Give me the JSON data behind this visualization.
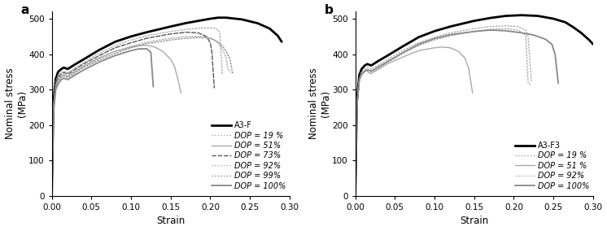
{
  "panel_a": {
    "label": "a",
    "xlabel": "Strain",
    "ylabel": "Nominal stress\n(MPa)",
    "xlim": [
      0.0,
      0.3
    ],
    "ylim": [
      0,
      520
    ],
    "yticks": [
      0,
      100,
      200,
      300,
      400,
      500
    ],
    "xticks": [
      0.0,
      0.05,
      0.1,
      0.15,
      0.2,
      0.25,
      0.3
    ],
    "curves": [
      {
        "label": "A3-F",
        "color": "#000000",
        "linewidth": 2.0,
        "linestyle": "solid",
        "x": [
          0.0,
          0.002,
          0.005,
          0.008,
          0.012,
          0.015,
          0.018,
          0.02,
          0.025,
          0.03,
          0.04,
          0.06,
          0.08,
          0.1,
          0.12,
          0.15,
          0.17,
          0.19,
          0.2,
          0.21,
          0.22,
          0.24,
          0.26,
          0.275,
          0.285,
          0.29
        ],
        "y": [
          0,
          260,
          330,
          350,
          358,
          362,
          360,
          358,
          365,
          372,
          385,
          412,
          435,
          450,
          462,
          478,
          488,
          496,
          500,
          503,
          503,
          498,
          487,
          472,
          452,
          435
        ]
      },
      {
        "label": "DOP = 19 %",
        "color": "#aaaaaa",
        "linewidth": 1.0,
        "linestyle": "dotted",
        "x": [
          0.0,
          0.002,
          0.005,
          0.008,
          0.012,
          0.015,
          0.018,
          0.02,
          0.025,
          0.03,
          0.04,
          0.06,
          0.08,
          0.1,
          0.12,
          0.15,
          0.17,
          0.19,
          0.2,
          0.205,
          0.21,
          0.212,
          0.215
        ],
        "y": [
          0,
          252,
          322,
          340,
          348,
          352,
          350,
          348,
          355,
          362,
          376,
          402,
          424,
          440,
          452,
          464,
          470,
          474,
          474,
          473,
          468,
          458,
          345
        ]
      },
      {
        "label": "DOP = 51%",
        "color": "#aaaaaa",
        "linewidth": 1.0,
        "linestyle": "solid",
        "x": [
          0.0,
          0.002,
          0.005,
          0.008,
          0.012,
          0.015,
          0.018,
          0.02,
          0.025,
          0.03,
          0.04,
          0.06,
          0.08,
          0.1,
          0.11,
          0.12,
          0.13,
          0.14,
          0.15,
          0.155,
          0.16,
          0.163
        ],
        "y": [
          0,
          245,
          312,
          328,
          338,
          342,
          340,
          338,
          345,
          352,
          366,
          390,
          408,
          420,
          424,
          425,
          420,
          408,
          385,
          365,
          320,
          290
        ]
      },
      {
        "label": "DOP = 73%",
        "color": "#555555",
        "linewidth": 1.0,
        "linestyle": "dashed",
        "x": [
          0.0,
          0.002,
          0.005,
          0.008,
          0.012,
          0.015,
          0.018,
          0.02,
          0.025,
          0.03,
          0.04,
          0.06,
          0.08,
          0.1,
          0.12,
          0.15,
          0.17,
          0.185,
          0.195,
          0.2,
          0.202,
          0.205
        ],
        "y": [
          0,
          248,
          318,
          335,
          344,
          348,
          346,
          344,
          350,
          358,
          372,
          396,
          418,
          432,
          445,
          457,
          462,
          460,
          450,
          432,
          405,
          305
        ]
      },
      {
        "label": "DOP = 92%",
        "color": "#aaaaaa",
        "linewidth": 1.0,
        "linestyle": "dotted",
        "x": [
          0.0,
          0.002,
          0.005,
          0.008,
          0.012,
          0.015,
          0.018,
          0.02,
          0.025,
          0.03,
          0.04,
          0.06,
          0.08,
          0.1,
          0.12,
          0.15,
          0.17,
          0.185,
          0.195,
          0.2,
          0.205,
          0.21,
          0.215,
          0.22,
          0.222,
          0.225
        ],
        "y": [
          0,
          242,
          312,
          328,
          338,
          342,
          340,
          338,
          345,
          352,
          365,
          388,
          408,
          422,
          434,
          445,
          450,
          450,
          448,
          445,
          440,
          430,
          415,
          390,
          360,
          350
        ]
      },
      {
        "label": "DOP = 99%",
        "color": "#888888",
        "linewidth": 1.0,
        "linestyle": "dotted",
        "x": [
          0.0,
          0.002,
          0.005,
          0.008,
          0.012,
          0.015,
          0.018,
          0.02,
          0.025,
          0.03,
          0.04,
          0.06,
          0.08,
          0.1,
          0.12,
          0.15,
          0.17,
          0.185,
          0.195,
          0.2,
          0.205,
          0.21,
          0.215,
          0.22,
          0.225,
          0.228
        ],
        "y": [
          0,
          238,
          308,
          324,
          334,
          338,
          336,
          334,
          340,
          348,
          362,
          384,
          402,
          418,
          430,
          440,
          445,
          447,
          446,
          444,
          440,
          434,
          424,
          408,
          385,
          345
        ]
      },
      {
        "label": "DOP = 100%",
        "color": "#888888",
        "linewidth": 1.3,
        "linestyle": "solid",
        "x": [
          0.0,
          0.002,
          0.005,
          0.008,
          0.012,
          0.015,
          0.018,
          0.02,
          0.025,
          0.03,
          0.04,
          0.06,
          0.08,
          0.1,
          0.11,
          0.12,
          0.125,
          0.128
        ],
        "y": [
          0,
          232,
          300,
          316,
          328,
          332,
          330,
          328,
          335,
          342,
          355,
          378,
          396,
          410,
          415,
          415,
          405,
          308
        ]
      }
    ],
    "legend_entries": [
      {
        "label": "A3-F",
        "color": "#000000",
        "linewidth": 2.0,
        "linestyle": "solid"
      },
      {
        "label": "DOP = 19 %",
        "color": "#aaaaaa",
        "linewidth": 1.0,
        "linestyle": "dotted"
      },
      {
        "label": "DOP = 51%",
        "color": "#aaaaaa",
        "linewidth": 1.0,
        "linestyle": "solid"
      },
      {
        "label": "DOP = 73%",
        "color": "#555555",
        "linewidth": 1.0,
        "linestyle": "dashed"
      },
      {
        "label": "DOP = 92%",
        "color": "#aaaaaa",
        "linewidth": 1.0,
        "linestyle": "dotted"
      },
      {
        "label": "DOP = 99%",
        "color": "#888888",
        "linewidth": 1.0,
        "linestyle": "dotted"
      },
      {
        "label": "DOP = 100%",
        "color": "#888888",
        "linewidth": 1.3,
        "linestyle": "solid"
      }
    ]
  },
  "panel_b": {
    "label": "b",
    "xlabel": "Strain",
    "ylabel": "Nominal stress\n(MPa)",
    "xlim": [
      0.0,
      0.3
    ],
    "ylim": [
      0,
      520
    ],
    "yticks": [
      0,
      100,
      200,
      300,
      400,
      500
    ],
    "xticks": [
      0.0,
      0.05,
      0.1,
      0.15,
      0.2,
      0.25,
      0.3
    ],
    "curves": [
      {
        "label": "A3-F3",
        "color": "#000000",
        "linewidth": 2.0,
        "linestyle": "solid",
        "x": [
          0.0,
          0.002,
          0.005,
          0.008,
          0.012,
          0.015,
          0.018,
          0.02,
          0.025,
          0.03,
          0.04,
          0.06,
          0.08,
          0.1,
          0.12,
          0.15,
          0.17,
          0.19,
          0.21,
          0.23,
          0.25,
          0.265,
          0.275,
          0.285,
          0.295,
          0.3
        ],
        "y": [
          0,
          265,
          340,
          358,
          368,
          372,
          370,
          368,
          375,
          382,
          395,
          422,
          448,
          465,
          478,
          494,
          502,
          508,
          510,
          508,
          500,
          490,
          476,
          460,
          440,
          428
        ]
      },
      {
        "label": "DOP = 19 %",
        "color": "#aaaaaa",
        "linewidth": 1.0,
        "linestyle": "dotted",
        "x": [
          0.0,
          0.002,
          0.005,
          0.008,
          0.012,
          0.015,
          0.018,
          0.02,
          0.025,
          0.03,
          0.04,
          0.06,
          0.08,
          0.1,
          0.12,
          0.15,
          0.17,
          0.19,
          0.205,
          0.215,
          0.218,
          0.222
        ],
        "y": [
          0,
          258,
          332,
          350,
          358,
          362,
          360,
          358,
          364,
          370,
          384,
          410,
          432,
          448,
          460,
          472,
          478,
          480,
          478,
          468,
          450,
          325
        ]
      },
      {
        "label": "DOP = 51 %",
        "color": "#aaaaaa",
        "linewidth": 1.0,
        "linestyle": "solid",
        "x": [
          0.0,
          0.002,
          0.005,
          0.008,
          0.012,
          0.013,
          0.015,
          0.017,
          0.02,
          0.025,
          0.03,
          0.04,
          0.06,
          0.08,
          0.1,
          0.11,
          0.12,
          0.13,
          0.138,
          0.143,
          0.148
        ],
        "y": [
          0,
          258,
          325,
          342,
          352,
          355,
          352,
          348,
          345,
          352,
          358,
          372,
          392,
          410,
          418,
          420,
          418,
          408,
          390,
          360,
          290
        ]
      },
      {
        "label": "DOP = 92%",
        "color": "#aaaaaa",
        "linewidth": 1.0,
        "linestyle": "dotted",
        "x": [
          0.0,
          0.002,
          0.005,
          0.008,
          0.012,
          0.015,
          0.018,
          0.02,
          0.025,
          0.03,
          0.04,
          0.06,
          0.08,
          0.1,
          0.12,
          0.15,
          0.17,
          0.19,
          0.205,
          0.215,
          0.218,
          0.222
        ],
        "y": [
          0,
          250,
          325,
          342,
          350,
          354,
          352,
          350,
          356,
          362,
          376,
          402,
          424,
          440,
          452,
          464,
          470,
          472,
          468,
          454,
          320,
          312
        ]
      },
      {
        "label": "DOP = 100%",
        "color": "#888888",
        "linewidth": 1.3,
        "linestyle": "solid",
        "x": [
          0.0,
          0.002,
          0.005,
          0.008,
          0.012,
          0.015,
          0.018,
          0.02,
          0.025,
          0.03,
          0.04,
          0.06,
          0.08,
          0.1,
          0.12,
          0.15,
          0.17,
          0.19,
          0.21,
          0.225,
          0.24,
          0.248,
          0.252,
          0.256
        ],
        "y": [
          0,
          252,
          328,
          344,
          352,
          356,
          354,
          352,
          358,
          365,
          378,
          404,
          428,
          444,
          455,
          464,
          468,
          466,
          460,
          454,
          442,
          428,
          400,
          318
        ]
      }
    ],
    "legend_entries": [
      {
        "label": "A3-F3",
        "color": "#000000",
        "linewidth": 2.0,
        "linestyle": "solid"
      },
      {
        "label": "DOP = 19 %",
        "color": "#aaaaaa",
        "linewidth": 1.0,
        "linestyle": "dotted"
      },
      {
        "label": "DOP = 51 %",
        "color": "#aaaaaa",
        "linewidth": 1.0,
        "linestyle": "solid"
      },
      {
        "label": "DOP = 92%",
        "color": "#aaaaaa",
        "linewidth": 1.0,
        "linestyle": "dotted"
      },
      {
        "label": "DOP = 100%",
        "color": "#888888",
        "linewidth": 1.3,
        "linestyle": "solid"
      }
    ]
  }
}
